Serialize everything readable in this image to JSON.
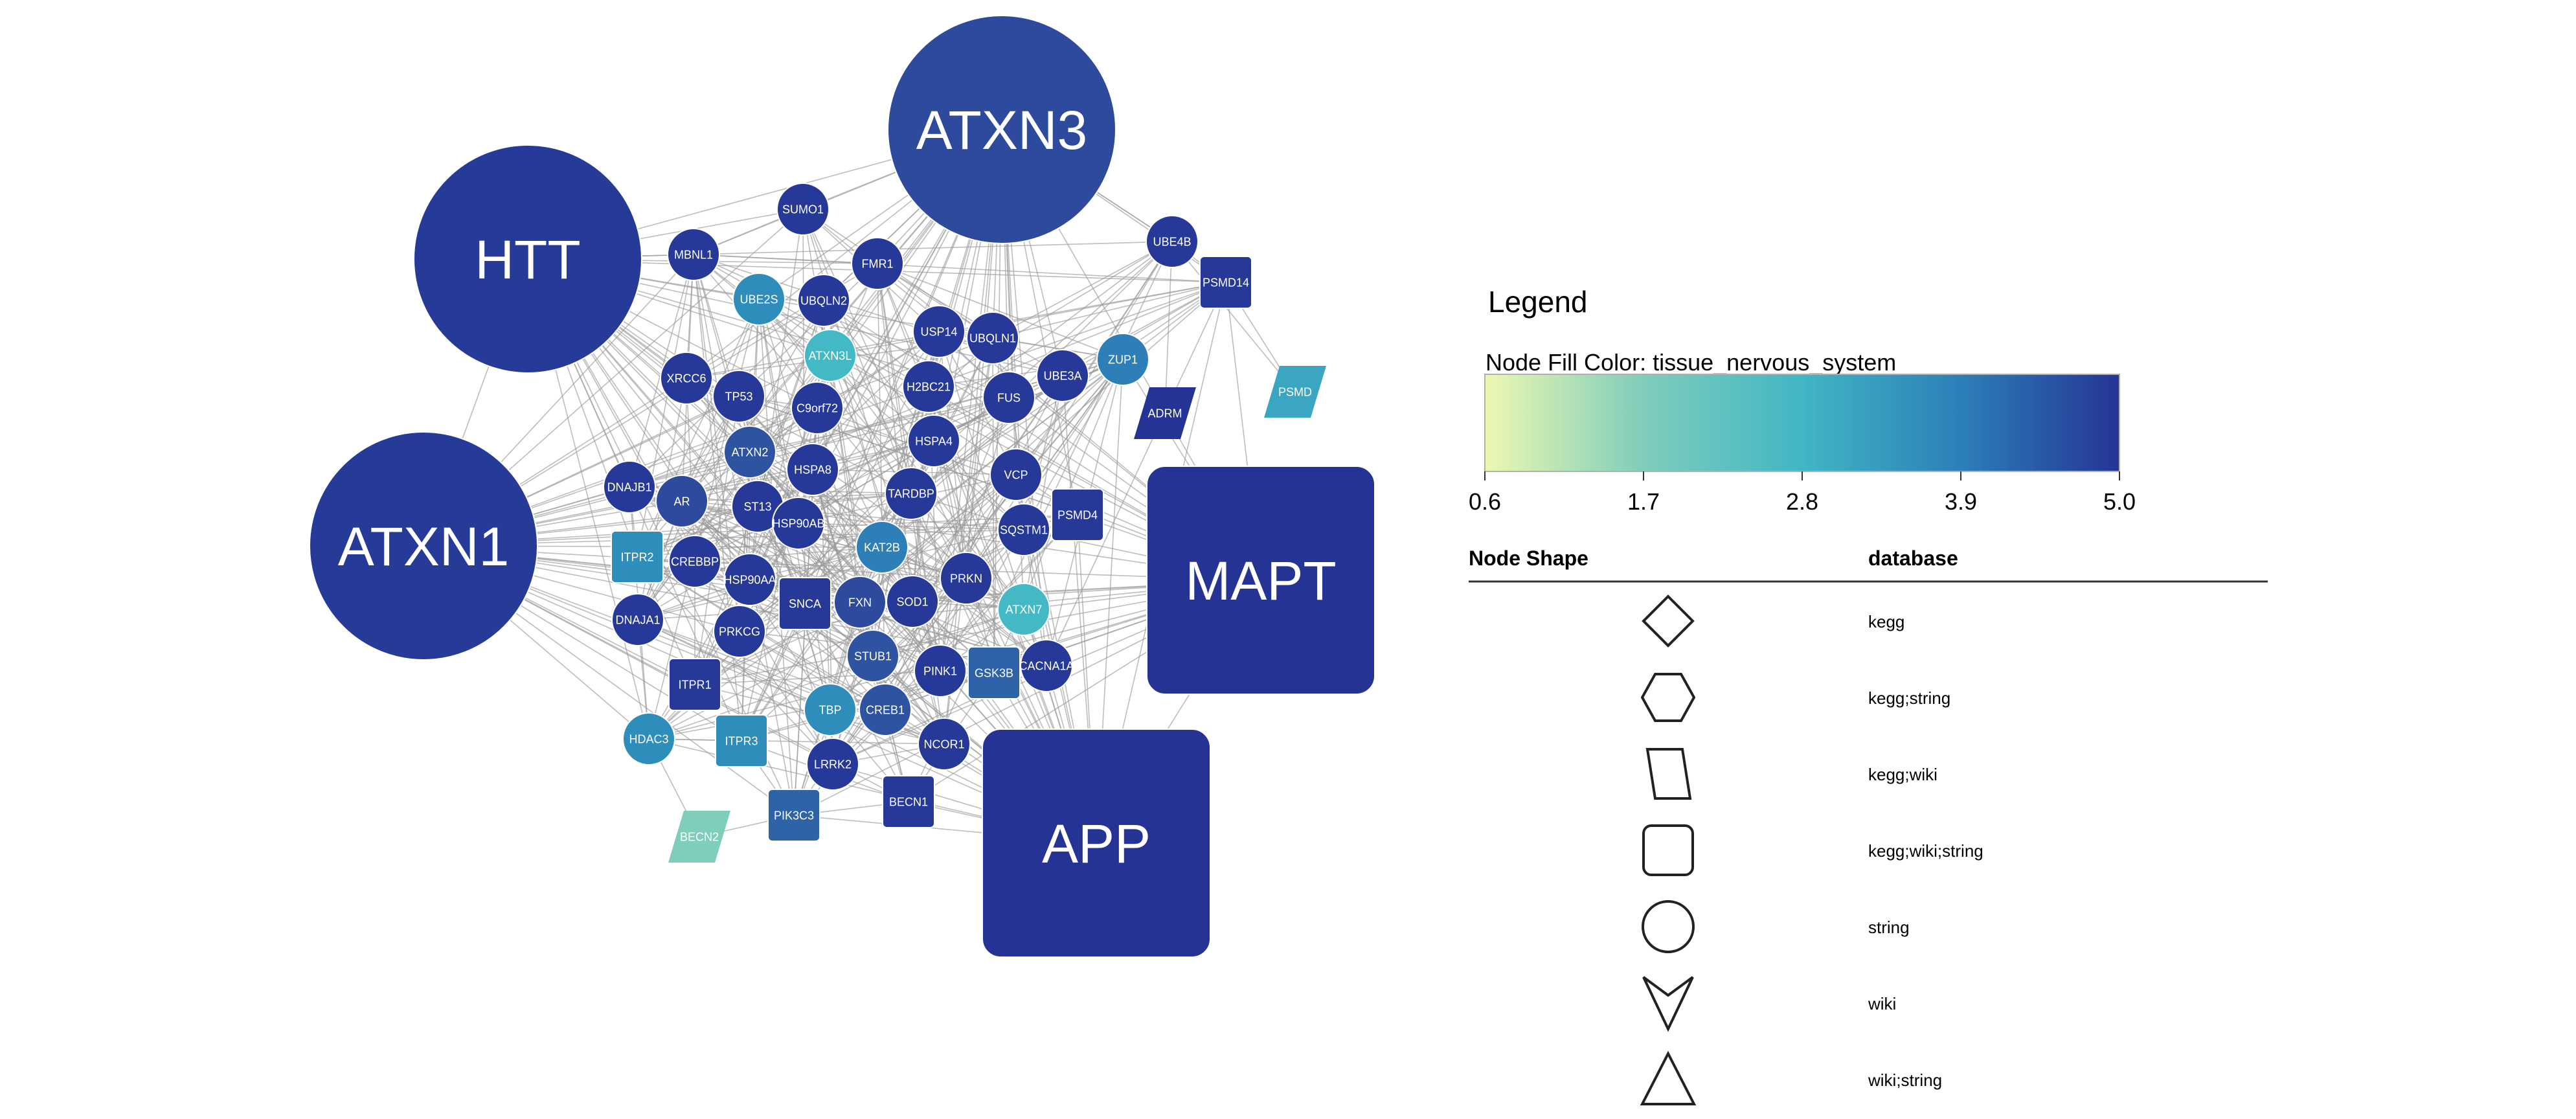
{
  "nodes": [
    {
      "id": "ATXN3",
      "shape": "circle",
      "color": "#2d4a9d",
      "label": "ATXN3"
    },
    {
      "id": "HTT",
      "shape": "circle",
      "color": "#263b98",
      "label": "HTT"
    },
    {
      "id": "ATXN1",
      "shape": "circle",
      "color": "#263b98",
      "label": "ATXN1"
    },
    {
      "id": "MAPT",
      "shape": "rect",
      "color": "#253494",
      "label": "MAPT"
    },
    {
      "id": "APP",
      "shape": "rect",
      "color": "#253494",
      "label": "APP"
    },
    {
      "id": "SUMO1",
      "shape": "circle",
      "color": "#273998",
      "label": "SUMO1"
    },
    {
      "id": "MBNL1",
      "shape": "circle",
      "color": "#273998",
      "label": "MBNL1"
    },
    {
      "id": "FMR1",
      "shape": "circle",
      "color": "#273998",
      "label": "FMR1"
    },
    {
      "id": "UBE4B",
      "shape": "circle",
      "color": "#273998",
      "label": "UBE4B"
    },
    {
      "id": "PSMD14",
      "shape": "rect",
      "color": "#273998",
      "label": "PSMD14"
    },
    {
      "id": "UBE2S",
      "shape": "circle",
      "color": "#2f8dbb",
      "label": "UBE2S"
    },
    {
      "id": "UBQLN2",
      "shape": "circle",
      "color": "#273998",
      "label": "UBQLN2"
    },
    {
      "id": "USP14",
      "shape": "circle",
      "color": "#273998",
      "label": "USP14"
    },
    {
      "id": "UBQLN1",
      "shape": "circle",
      "color": "#273998",
      "label": "UBQLN1"
    },
    {
      "id": "ATXN3L",
      "shape": "circle",
      "color": "#44b9c6",
      "label": "ATXN3L"
    },
    {
      "id": "XRCC6",
      "shape": "circle",
      "color": "#273998",
      "label": "XRCC6"
    },
    {
      "id": "TP53",
      "shape": "circle",
      "color": "#273998",
      "label": "TP53"
    },
    {
      "id": "C9orf72",
      "shape": "circle",
      "color": "#273998",
      "label": "C9orf72"
    },
    {
      "id": "H2BC21",
      "shape": "circle",
      "color": "#273998",
      "label": "H2BC21"
    },
    {
      "id": "UBE3A",
      "shape": "circle",
      "color": "#273998",
      "label": "UBE3A"
    },
    {
      "id": "FUS",
      "shape": "circle",
      "color": "#273998",
      "label": "FUS"
    },
    {
      "id": "ZUP1",
      "shape": "circle",
      "color": "#2e7fb8",
      "label": "ZUP1"
    },
    {
      "id": "ADRM",
      "shape": "para",
      "color": "#253494",
      "label": "ADRM"
    },
    {
      "id": "PSMD",
      "shape": "para",
      "color": "#3aa6c2",
      "label": "PSMD"
    },
    {
      "id": "ATXN2",
      "shape": "circle",
      "color": "#2e53a1",
      "label": "ATXN2"
    },
    {
      "id": "HSPA4",
      "shape": "circle",
      "color": "#273998",
      "label": "HSPA4"
    },
    {
      "id": "HSPA8",
      "shape": "circle",
      "color": "#273998",
      "label": "HSPA8"
    },
    {
      "id": "DNAJB1",
      "shape": "circle",
      "color": "#273998",
      "label": "DNAJB1"
    },
    {
      "id": "AR",
      "shape": "circle",
      "color": "#2d4a9d",
      "label": "AR"
    },
    {
      "id": "ST13",
      "shape": "circle",
      "color": "#273998",
      "label": "ST13"
    },
    {
      "id": "TARDBP",
      "shape": "circle",
      "color": "#273998",
      "label": "TARDBP"
    },
    {
      "id": "VCP",
      "shape": "circle",
      "color": "#273998",
      "label": "VCP"
    },
    {
      "id": "PSMD4",
      "shape": "rect",
      "color": "#273998",
      "label": "PSMD4"
    },
    {
      "id": "HSP90AB",
      "shape": "circle",
      "color": "#273998",
      "label": "HSP90AB"
    },
    {
      "id": "SQSTM1",
      "shape": "circle",
      "color": "#273998",
      "label": "SQSTM1"
    },
    {
      "id": "ITPR2",
      "shape": "rect",
      "color": "#2f8dbb",
      "label": "ITPR2"
    },
    {
      "id": "CREBBP",
      "shape": "circle",
      "color": "#273998",
      "label": "CREBBP"
    },
    {
      "id": "KAT2B",
      "shape": "circle",
      "color": "#2e7fb8",
      "label": "KAT2B"
    },
    {
      "id": "HSP90AA",
      "shape": "circle",
      "color": "#273998",
      "label": "HSP90AA"
    },
    {
      "id": "SNCA",
      "shape": "rect",
      "color": "#273998",
      "label": "SNCA"
    },
    {
      "id": "FXN",
      "shape": "circle",
      "color": "#2d4a9d",
      "label": "FXN"
    },
    {
      "id": "SOD1",
      "shape": "circle",
      "color": "#273998",
      "label": "SOD1"
    },
    {
      "id": "PRKN",
      "shape": "circle",
      "color": "#273998",
      "label": "PRKN"
    },
    {
      "id": "ATXN7",
      "shape": "circle",
      "color": "#44b9c6",
      "label": "ATXN7"
    },
    {
      "id": "DNAJA1",
      "shape": "circle",
      "color": "#273998",
      "label": "DNAJA1"
    },
    {
      "id": "PRKCG",
      "shape": "circle",
      "color": "#273998",
      "label": "PRKCG"
    },
    {
      "id": "STUB1",
      "shape": "circle",
      "color": "#2e53a1",
      "label": "STUB1"
    },
    {
      "id": "PINK1",
      "shape": "circle",
      "color": "#273998",
      "label": "PINK1"
    },
    {
      "id": "GSK3B",
      "shape": "rect",
      "color": "#2e63a8",
      "label": "GSK3B"
    },
    {
      "id": "CACNA1A",
      "shape": "circle",
      "color": "#273998",
      "label": "CACNA1A"
    },
    {
      "id": "ITPR1",
      "shape": "rect",
      "color": "#273998",
      "label": "ITPR1"
    },
    {
      "id": "TBP",
      "shape": "circle",
      "color": "#2f8dbb",
      "label": "TBP"
    },
    {
      "id": "CREB1",
      "shape": "circle",
      "color": "#2e53a1",
      "label": "CREB1"
    },
    {
      "id": "HDAC3",
      "shape": "circle",
      "color": "#2f8dbb",
      "label": "HDAC3"
    },
    {
      "id": "ITPR3",
      "shape": "rect",
      "color": "#2f8dbb",
      "label": "ITPR3"
    },
    {
      "id": "NCOR1",
      "shape": "circle",
      "color": "#273998",
      "label": "NCOR1"
    },
    {
      "id": "LRRK2",
      "shape": "circle",
      "color": "#273998",
      "label": "LRRK2"
    },
    {
      "id": "BECN1",
      "shape": "rect",
      "color": "#273998",
      "label": "BECN1"
    },
    {
      "id": "PIK3C3",
      "shape": "rect",
      "color": "#2e63a8",
      "label": "PIK3C3"
    },
    {
      "id": "BECN2",
      "shape": "para",
      "color": "#7fcdbb",
      "label": "BECN2"
    }
  ],
  "legend": {
    "title": "Legend",
    "fill_title": "Node Fill Color:  tissue_nervous_system",
    "gradient_colors": [
      "#edf8b1",
      "#7fcdbb",
      "#41b6c4",
      "#2c7fb8",
      "#253494"
    ],
    "ticks": [
      "0.6",
      "1.7",
      "2.8",
      "3.9",
      "5.0"
    ],
    "shape_header": "Node Shape",
    "db_header": "database",
    "shapes": [
      {
        "shape": "diamond-icon",
        "label": "kegg"
      },
      {
        "shape": "hexagon-icon",
        "label": "kegg;string"
      },
      {
        "shape": "parallelogram-icon",
        "label": "kegg;wiki"
      },
      {
        "shape": "rounded-square-icon",
        "label": "kegg;wiki;string"
      },
      {
        "shape": "circle-icon",
        "label": "string"
      },
      {
        "shape": "vee-icon",
        "label": "wiki"
      },
      {
        "shape": "triangle-icon",
        "label": "wiki;string"
      }
    ]
  }
}
